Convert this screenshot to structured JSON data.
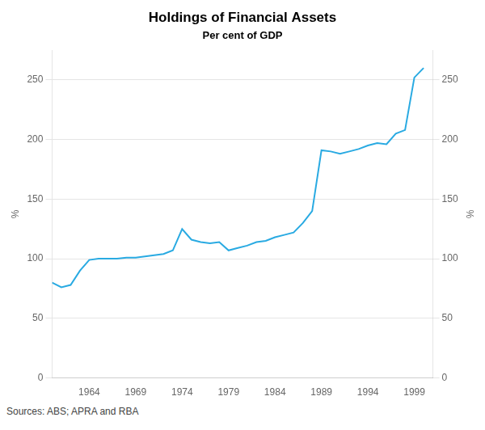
{
  "chart_data": {
    "type": "line",
    "title": "Holdings of Financial Assets",
    "subtitle": "Per cent of GDP",
    "annotations": [
      "Sources: ABS; APRA and RBA"
    ],
    "ylabel": "%",
    "y2label": "%",
    "color": "#29aae2",
    "grid": true,
    "x": [
      1960,
      1961,
      1962,
      1963,
      1964,
      1965,
      1966,
      1967,
      1968,
      1969,
      1970,
      1971,
      1972,
      1973,
      1974,
      1975,
      1976,
      1977,
      1978,
      1979,
      1980,
      1981,
      1982,
      1983,
      1984,
      1985,
      1986,
      1987,
      1988,
      1989,
      1990,
      1991,
      1992,
      1993,
      1994,
      1995,
      1996,
      1997,
      1998,
      1999,
      2000
    ],
    "values": [
      80,
      76,
      78,
      90,
      99,
      100,
      100,
      100,
      101,
      101,
      102,
      103,
      104,
      107,
      125,
      116,
      114,
      113,
      114,
      107,
      109,
      111,
      114,
      115,
      118,
      120,
      122,
      130,
      140,
      191,
      190,
      188,
      190,
      192,
      195,
      197,
      196,
      205,
      208,
      252,
      260
    ],
    "xlim": [
      1960,
      2001
    ],
    "xticks": [
      1964,
      1969,
      1974,
      1979,
      1984,
      1989,
      1994,
      1999
    ],
    "ylim": [
      0,
      275
    ],
    "yticks": [
      0,
      50,
      100,
      150,
      200,
      250
    ],
    "y2lim": [
      0,
      275
    ],
    "y2ticks": [
      0,
      50,
      100,
      150,
      200,
      250
    ]
  }
}
